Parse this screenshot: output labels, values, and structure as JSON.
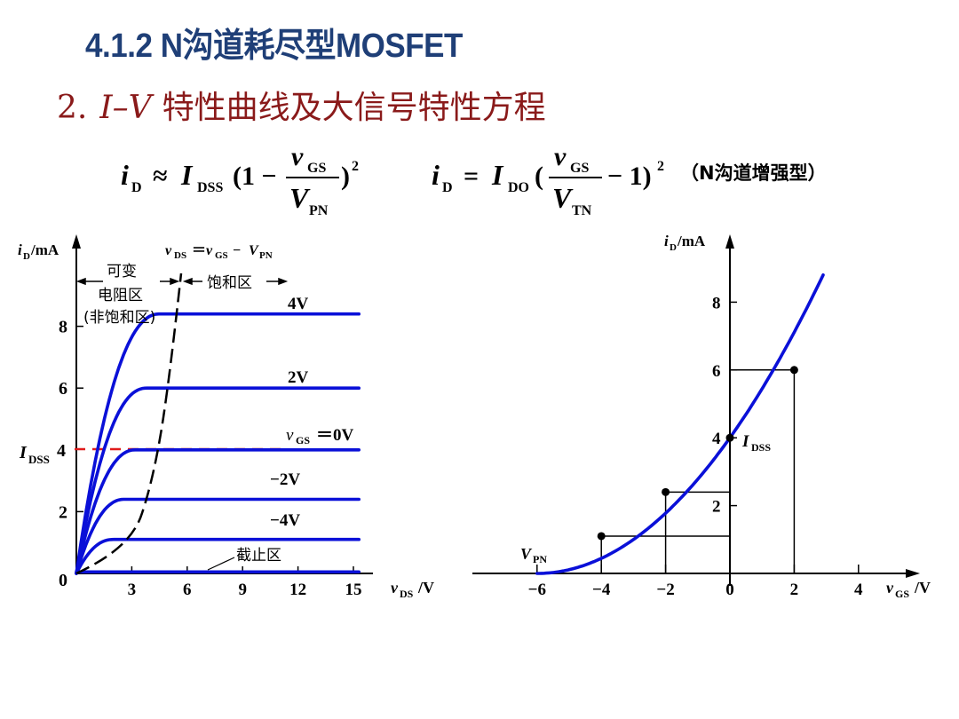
{
  "slide": {
    "title": "4.1.2  N沟道耗尽型MOSFET",
    "subtitle_num": "2.",
    "subtitle_iv": "I–V",
    "subtitle_text": "特性曲线及大信号特性方程"
  },
  "formulas": {
    "depletion": {
      "lhs": "i",
      "lhs_sub": "D",
      "rel": "≈",
      "coef": "I",
      "coef_sub": "DSS",
      "num": "v",
      "num_sub": "GS",
      "den": "V",
      "den_sub": "PN",
      "open": "(1 −",
      "close": ")",
      "exp": "2"
    },
    "enhancement": {
      "lhs": "i",
      "lhs_sub": "D",
      "rel": "=",
      "coef": "I",
      "coef_sub": "DO",
      "num": "v",
      "num_sub": "GS",
      "den": "V",
      "den_sub": "TN",
      "open": "(",
      "close": "− 1)",
      "exp": "2",
      "note": "（N沟道增强型）"
    }
  },
  "colors": {
    "title": "#1f3f77",
    "subtitle": "#8a1a1a",
    "curve": "#0a10d8",
    "idss_line": "#e01b1b",
    "axis": "#000000"
  },
  "chart_data": [
    {
      "type": "line",
      "name": "output characteristics",
      "xlabel": "v",
      "xlabel_sub": "DS",
      "xlabel_unit": "/V",
      "ylabel": "i",
      "ylabel_sub": "D",
      "ylabel_unit": "/mA",
      "xlim": [
        0,
        16
      ],
      "ylim": [
        0,
        9.5
      ],
      "x_ticks": [
        "3",
        "6",
        "9",
        "12",
        "15"
      ],
      "y_ticks": [
        "2",
        "6",
        "8"
      ],
      "origin_label": "0",
      "idss_label": "I",
      "idss_sub": "DSS",
      "idss_value": "4",
      "series": [
        {
          "name": "4V",
          "knee": 4.5,
          "isat": 8.4
        },
        {
          "name": "2V",
          "knee": 3.8,
          "isat": 6.0
        },
        {
          "name": "v_GS = 0V",
          "knee": 3.2,
          "isat": 4.0
        },
        {
          "name": "−2V",
          "knee": 2.6,
          "isat": 2.4
        },
        {
          "name": "−4V",
          "knee": 2.0,
          "isat": 1.1
        },
        {
          "name": "截止区",
          "knee": 0,
          "isat": 0.05
        }
      ],
      "labels": {
        "vgs_prefix": "v",
        "vgs_sub": "GS",
        "vgs_value": "＝0V",
        "v4": "4V",
        "v2": "2V",
        "vm2": "−2V",
        "vm4": "−4V",
        "cutoff": "截止区"
      },
      "boundary_label": {
        "v1": "v",
        "s1": "DS",
        "eq": "＝",
        "v2": "v",
        "s2": "GS",
        "minus": "−",
        "v3": "V",
        "s3": "PN"
      },
      "regions": {
        "ohmic_line1": "可变",
        "ohmic_line2": "电阻区",
        "ohmic_line3": "(非饱和区)",
        "saturation": "饱和区"
      }
    },
    {
      "type": "line",
      "name": "transfer characteristic",
      "xlabel": "v",
      "xlabel_sub": "GS",
      "xlabel_unit": "/V",
      "ylabel": "i",
      "ylabel_sub": "D",
      "ylabel_unit": "/mA",
      "xlim": [
        -8,
        6
      ],
      "ylim": [
        0,
        10
      ],
      "x_ticks": [
        "−6",
        "−4",
        "−2",
        "0",
        "2",
        "4"
      ],
      "y_ticks": [
        "2",
        "4",
        "6",
        "8"
      ],
      "points": [
        {
          "x": -6,
          "y": 0
        },
        {
          "x": -4,
          "y": 1.1
        },
        {
          "x": -2,
          "y": 2.4
        },
        {
          "x": 0,
          "y": 4.0
        },
        {
          "x": 2,
          "y": 6.0
        }
      ],
      "vpn_label": "V",
      "vpn_sub": "PN",
      "idss_label": "I",
      "idss_sub": "DSS"
    }
  ]
}
